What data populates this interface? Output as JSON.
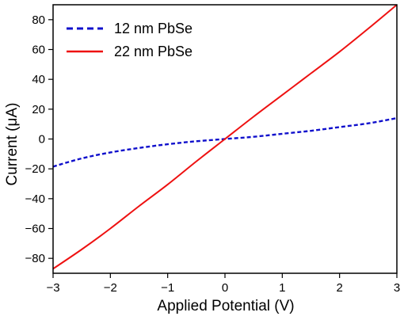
{
  "chart_data": {
    "type": "line",
    "title": "",
    "xlabel": "Applied Potential (V)",
    "ylabel": "Current (μA)",
    "xlim": [
      -3,
      3
    ],
    "ylim": [
      -90,
      90
    ],
    "xticks": [
      -3,
      -2,
      -1,
      0,
      1,
      2,
      3
    ],
    "yticks": [
      -80,
      -60,
      -40,
      -20,
      0,
      20,
      40,
      60,
      80
    ],
    "xtick_labels": [
      "−3",
      "−2",
      "−1",
      "0",
      "1",
      "2",
      "3"
    ],
    "ytick_labels": [
      "−80",
      "−60",
      "−40",
      "−20",
      "0",
      "20",
      "40",
      "60",
      "80"
    ],
    "grid": false,
    "legend_position": "top-left",
    "series": [
      {
        "name": "12 nm PbSe",
        "color": "#1010cc",
        "style": "dashed",
        "x": [
          -3,
          -2.5,
          -2,
          -1.5,
          -1,
          -0.5,
          0,
          0.5,
          1,
          1.5,
          2,
          2.5,
          3
        ],
        "y": [
          -18.5,
          -13,
          -9,
          -6,
          -3.5,
          -1.5,
          0,
          1.5,
          3.5,
          5.5,
          8,
          10.5,
          14
        ]
      },
      {
        "name": "22 nm PbSe",
        "color": "#ee1111",
        "style": "solid",
        "x": [
          -3,
          -2.5,
          -2,
          -1.5,
          -1,
          -0.5,
          0,
          0.5,
          1,
          1.5,
          2,
          2.5,
          3
        ],
        "y": [
          -87,
          -74,
          -60,
          -45,
          -30.5,
          -15,
          0,
          15,
          29.5,
          44,
          58.5,
          74,
          90
        ]
      }
    ]
  }
}
